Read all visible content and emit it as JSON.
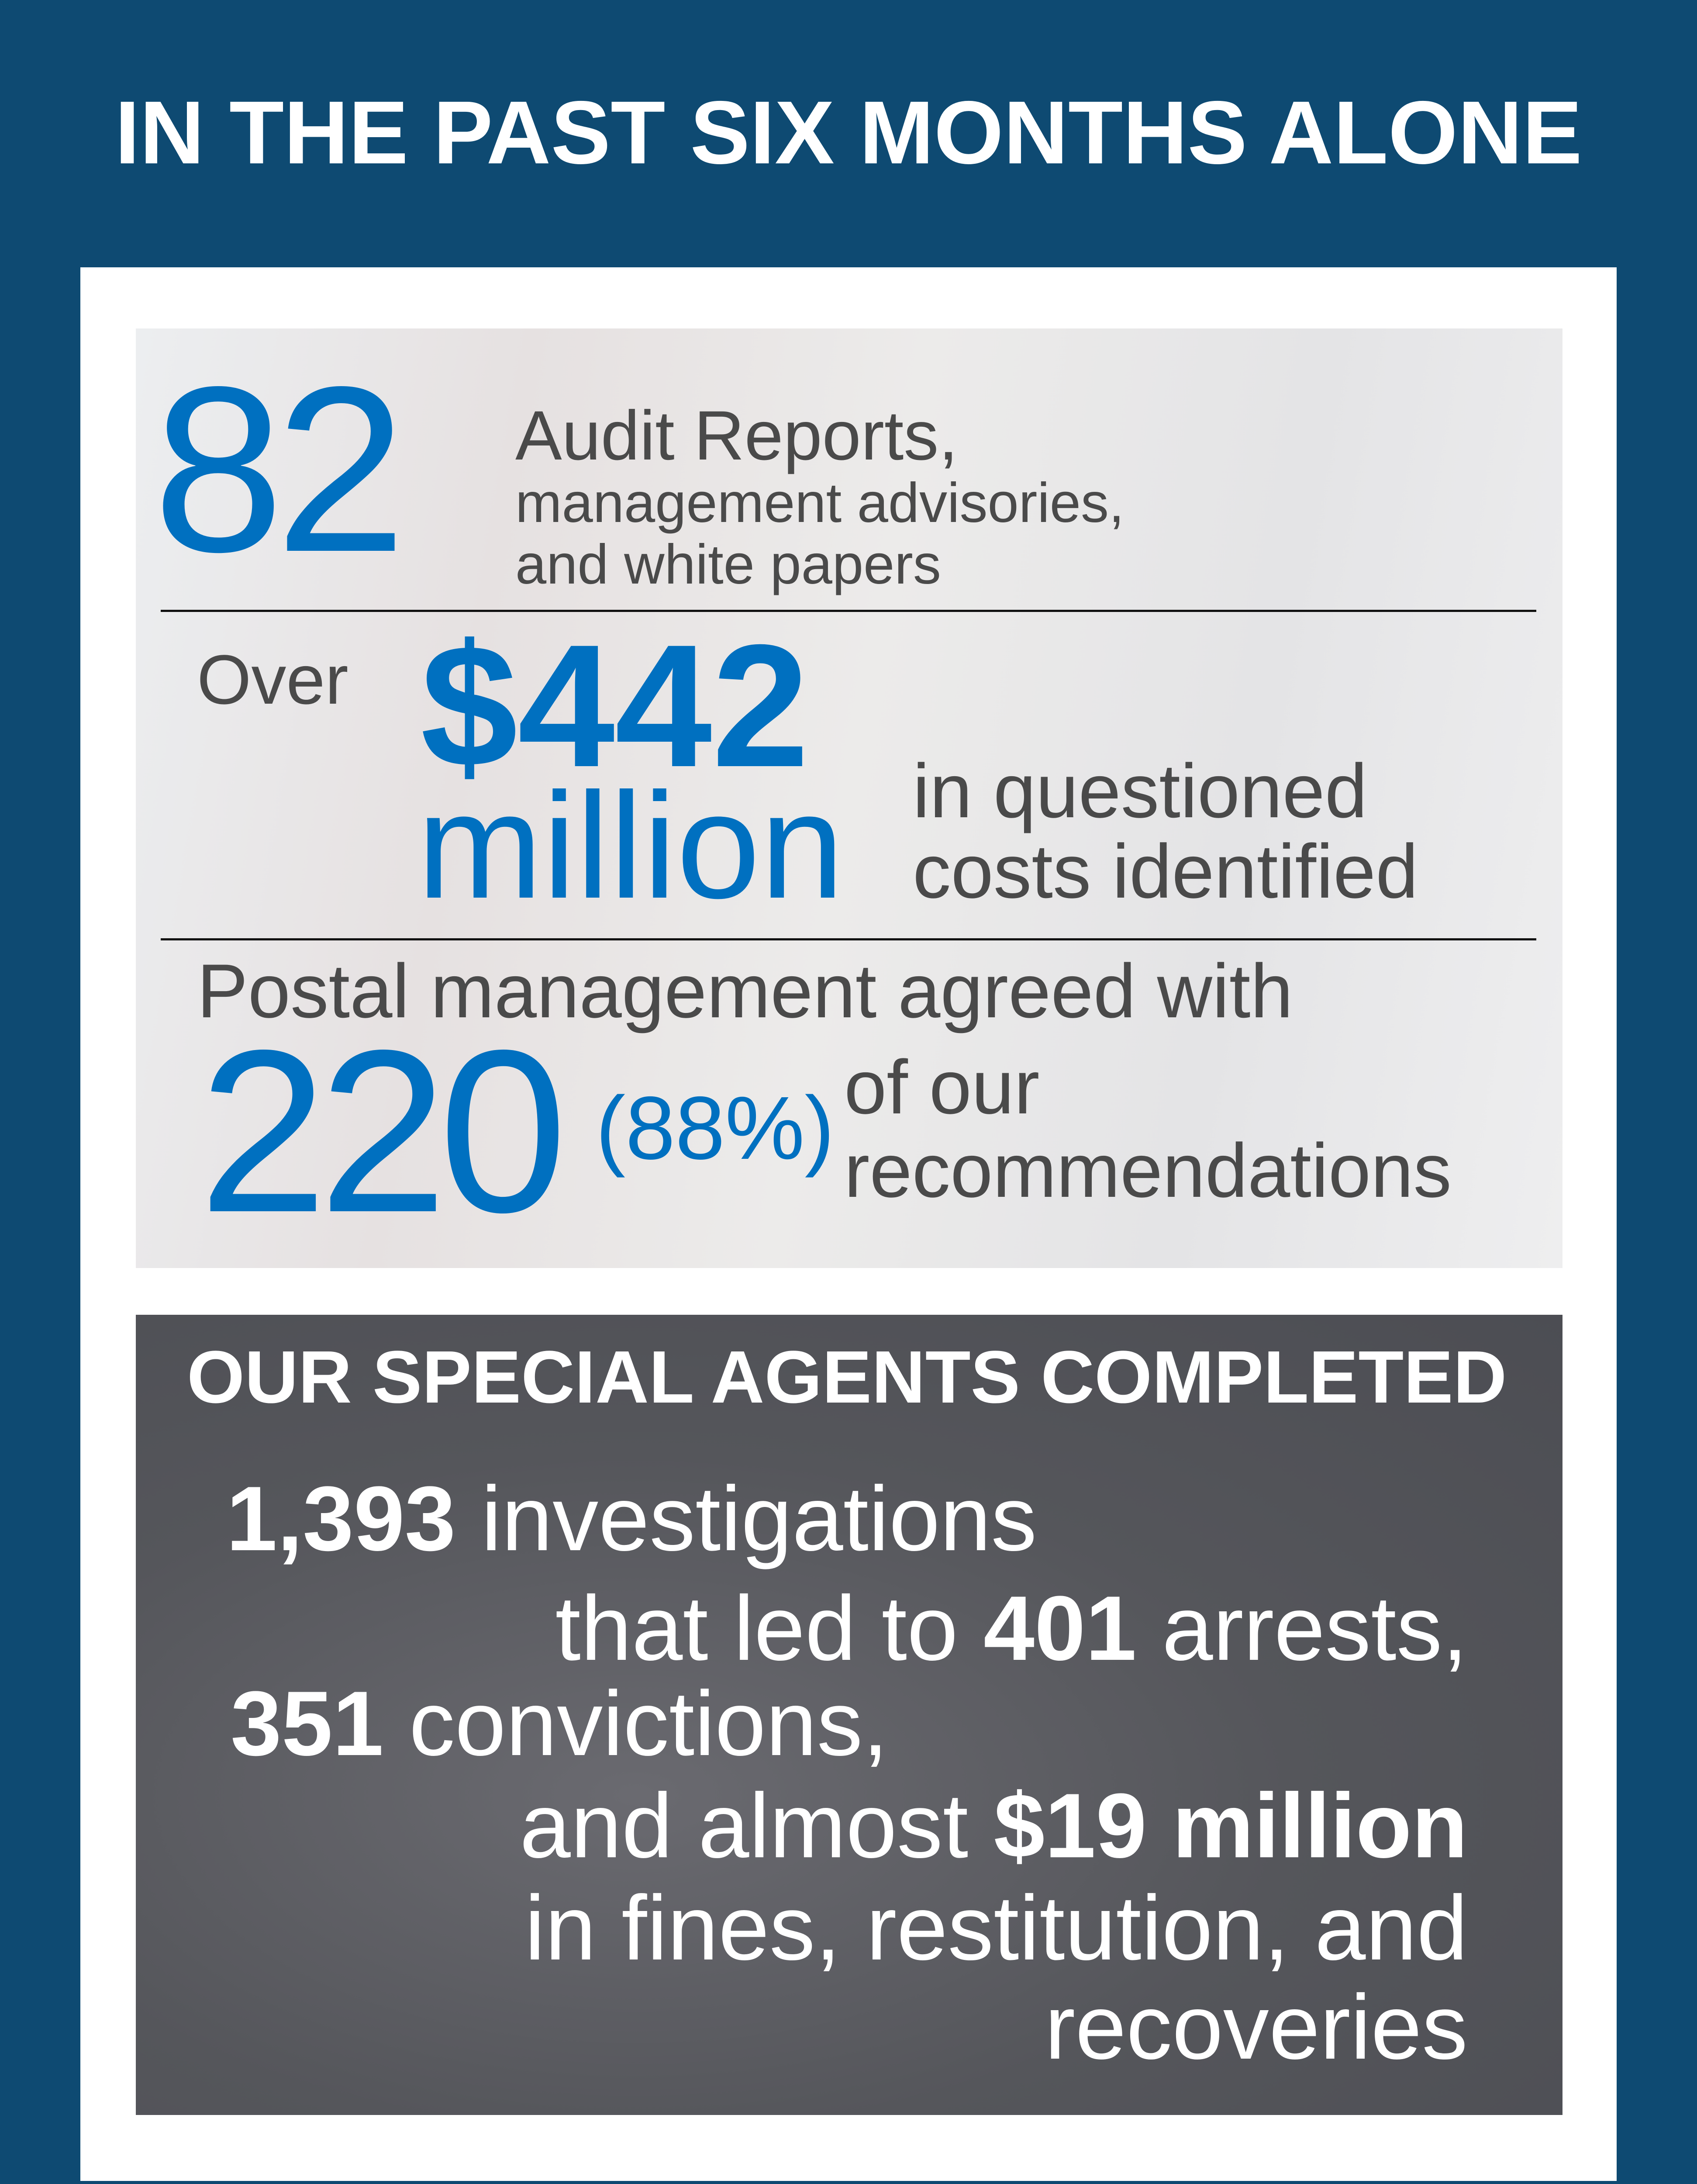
{
  "title": "IN THE PAST SIX MONTHS ALONE",
  "colors": {
    "background": "#0e4a72",
    "accent": "#0070c0",
    "text_dark": "#4a4a4a",
    "agents_panel": "#55565b"
  },
  "audit": {
    "reports_count": "82",
    "reports_line1": "Audit Reports,",
    "reports_line2": "management advisories,",
    "reports_line3": "and white papers",
    "over_label": "Over",
    "costs_amount": "$442",
    "costs_unit": "million",
    "costs_line1": "in questioned",
    "costs_line2": "costs identified",
    "agreed_line": "Postal management agreed with",
    "agreed_count": "220",
    "agreed_percent": "(88%)",
    "agreed_line1": "of our",
    "agreed_line2": "recommendations"
  },
  "agents": {
    "heading": "OUR SPECIAL AGENTS COMPLETED",
    "investigations_count": "1,393",
    "investigations_label": " investigations",
    "arrests_prefix": "that led to ",
    "arrests_count": "401",
    "arrests_label": " arrests,",
    "convictions_count": "351",
    "convictions_label": " convictions,",
    "fines_prefix": "and almost ",
    "fines_amount": "$19 million",
    "fines_line2": "in fines, restitution, and",
    "fines_line3": "recoveries"
  }
}
